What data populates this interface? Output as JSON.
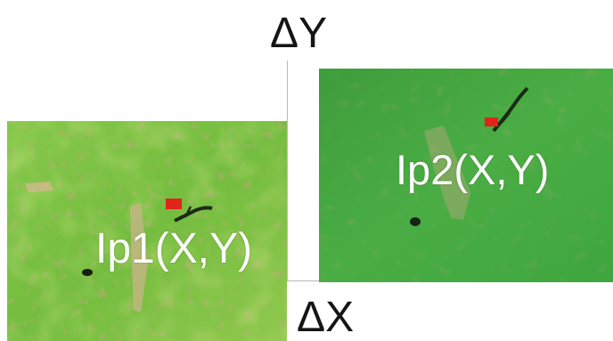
{
  "labels": {
    "delta_y": "ΔY",
    "delta_x": "ΔX"
  },
  "image1": {
    "label": "Ip1(X,Y)",
    "marker_color": "#e0231b"
  },
  "image2": {
    "label": "Ip2(X,Y)",
    "marker_color": "#e0231b"
  },
  "colors": {
    "axis_line": "#b9b9b9",
    "image1_base": "#7cc043",
    "image2_base": "#3da83c"
  }
}
